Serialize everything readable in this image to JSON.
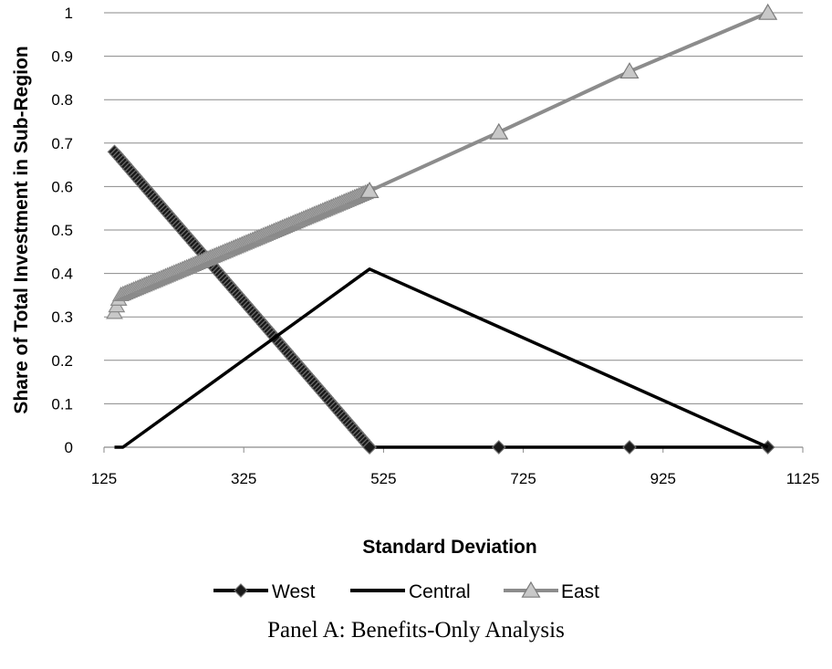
{
  "caption": "Panel A: Benefits-Only Analysis",
  "chart_data": {
    "type": "line",
    "xlabel": "Standard Deviation",
    "ylabel": "Share of Total Investment in Sub-Region",
    "xlim": [
      125,
      1125
    ],
    "ylim": [
      0,
      1
    ],
    "x_ticks": [
      "125",
      "325",
      "525",
      "725",
      "925",
      "1125"
    ],
    "y_ticks": [
      "0",
      "0.1",
      "0.2",
      "0.3",
      "0.4",
      "0.5",
      "0.6",
      "0.7",
      "0.8",
      "0.9",
      "1"
    ],
    "grid": "horizontal",
    "legend_position": "bottom",
    "series": [
      {
        "name": "West",
        "color": "#000000",
        "marker": "diamond",
        "dense_segment": {
          "x": [
            140,
            505
          ],
          "y": [
            0.68,
            0.0
          ]
        },
        "points": [
          {
            "x": 505,
            "y": 0.0
          },
          {
            "x": 690,
            "y": 0.0
          },
          {
            "x": 877,
            "y": 0.0
          },
          {
            "x": 1075,
            "y": 0.0
          }
        ]
      },
      {
        "name": "Central",
        "color": "#000000",
        "marker": "none",
        "points": [
          {
            "x": 140,
            "y": 0.0
          },
          {
            "x": 152,
            "y": 0.0
          },
          {
            "x": 505,
            "y": 0.41
          },
          {
            "x": 1075,
            "y": 0.0
          }
        ]
      },
      {
        "name": "East",
        "color": "#8c8c8c",
        "marker": "triangle",
        "dense_segment": {
          "x": [
            140,
            148,
            505
          ],
          "y": [
            0.31,
            0.35,
            0.59
          ]
        },
        "points": [
          {
            "x": 505,
            "y": 0.59
          },
          {
            "x": 690,
            "y": 0.725
          },
          {
            "x": 877,
            "y": 0.865
          },
          {
            "x": 1075,
            "y": 1.0
          }
        ]
      }
    ]
  }
}
